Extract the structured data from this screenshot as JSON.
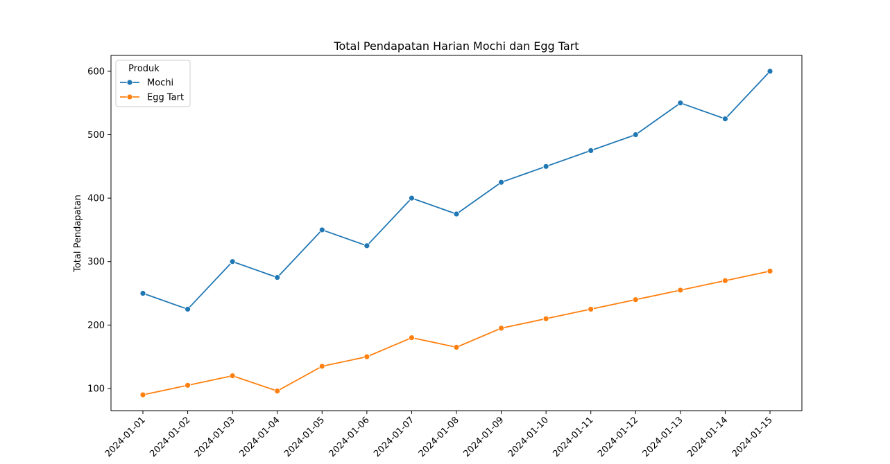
{
  "chart_data": {
    "type": "line",
    "title": "Total Pendapatan Harian Mochi dan Egg Tart",
    "xlabel": "",
    "ylabel": "Total Pendapatan",
    "x": [
      "2024-01-01",
      "2024-01-02",
      "2024-01-03",
      "2024-01-04",
      "2024-01-05",
      "2024-01-06",
      "2024-01-07",
      "2024-01-08",
      "2024-01-09",
      "2024-01-10",
      "2024-01-11",
      "2024-01-12",
      "2024-01-13",
      "2024-01-14",
      "2024-01-15"
    ],
    "yticks": [
      100,
      200,
      300,
      400,
      500,
      600
    ],
    "ylim": [
      65,
      625
    ],
    "grid": false,
    "legend": {
      "title": "Produk",
      "position": "top-left"
    },
    "series": [
      {
        "name": "Mochi",
        "color": "#1f77b4",
        "marker": "circle",
        "values": [
          250,
          225,
          300,
          275,
          350,
          325,
          400,
          375,
          425,
          450,
          475,
          500,
          550,
          525,
          600
        ]
      },
      {
        "name": "Egg Tart",
        "color": "#ff7f0e",
        "marker": "circle",
        "values": [
          90,
          105,
          120,
          96,
          135,
          150,
          180,
          165,
          195,
          210,
          225,
          240,
          255,
          270,
          285
        ]
      }
    ]
  }
}
